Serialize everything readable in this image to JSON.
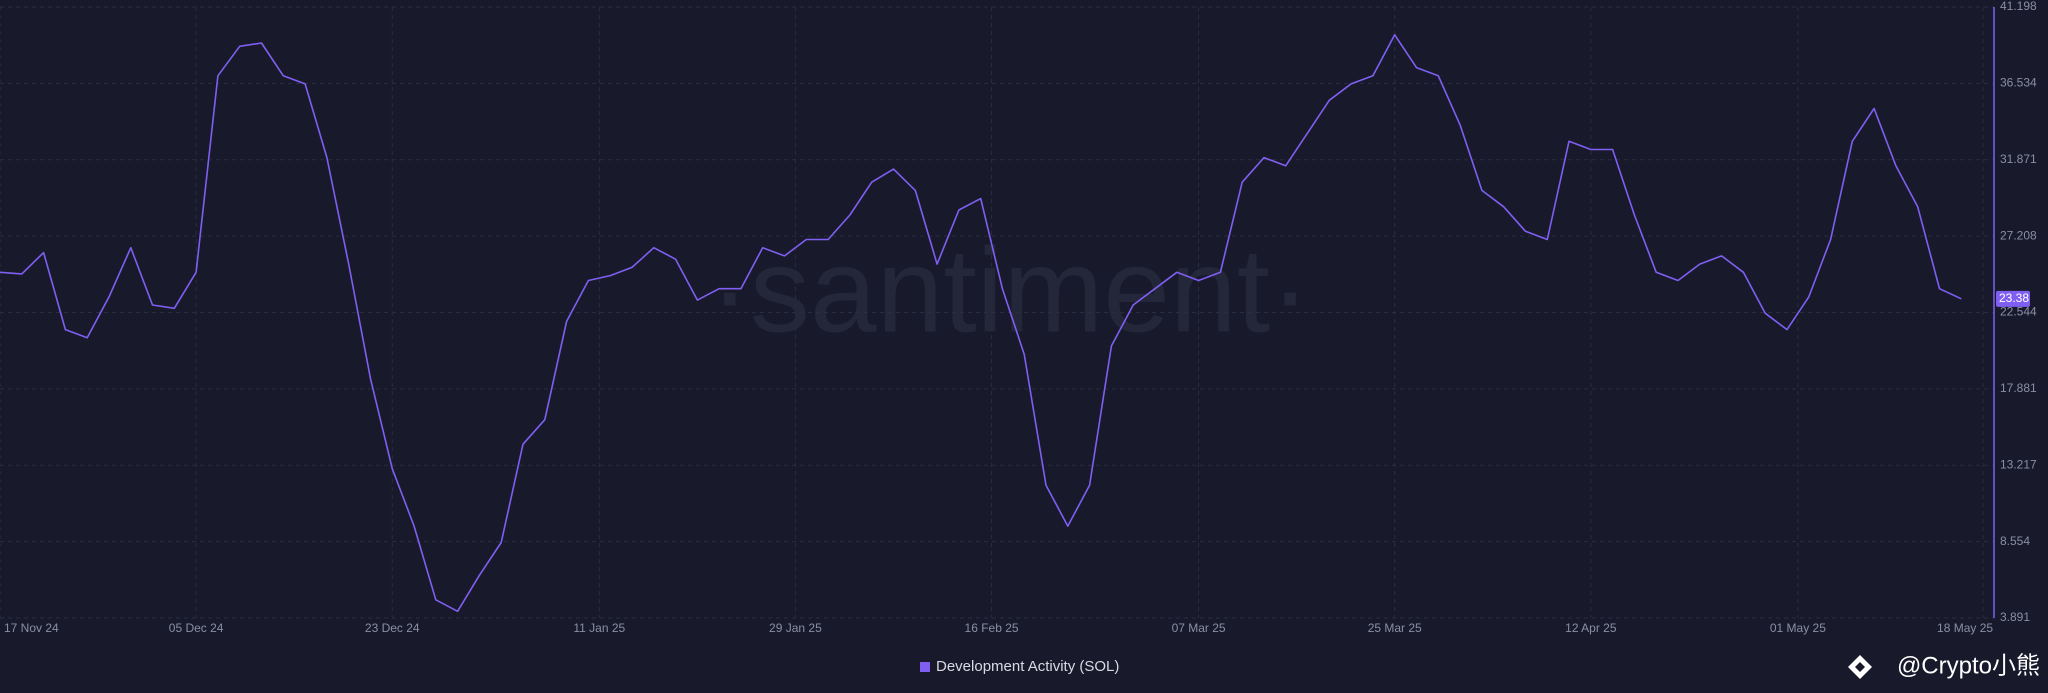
{
  "chart_data": {
    "type": "line",
    "watermark": "·santiment·",
    "attribution": "@Crypto小熊",
    "x": [
      "2024-11-17",
      "2024-11-19",
      "2024-11-21",
      "2024-11-23",
      "2024-11-25",
      "2024-11-27",
      "2024-11-29",
      "2024-12-01",
      "2024-12-03",
      "2024-12-05",
      "2024-12-07",
      "2024-12-09",
      "2024-12-11",
      "2024-12-13",
      "2024-12-15",
      "2024-12-17",
      "2024-12-19",
      "2024-12-21",
      "2024-12-23",
      "2024-12-25",
      "2024-12-27",
      "2024-12-29",
      "2024-12-31",
      "2025-01-02",
      "2025-01-04",
      "2025-01-06",
      "2025-01-08",
      "2025-01-10",
      "2025-01-12",
      "2025-01-14",
      "2025-01-16",
      "2025-01-18",
      "2025-01-20",
      "2025-01-22",
      "2025-01-24",
      "2025-01-26",
      "2025-01-28",
      "2025-01-30",
      "2025-02-01",
      "2025-02-03",
      "2025-02-05",
      "2025-02-07",
      "2025-02-09",
      "2025-02-11",
      "2025-02-13",
      "2025-02-15",
      "2025-02-17",
      "2025-02-19",
      "2025-02-21",
      "2025-02-23",
      "2025-02-25",
      "2025-02-27",
      "2025-03-01",
      "2025-03-03",
      "2025-03-05",
      "2025-03-07",
      "2025-03-09",
      "2025-03-11",
      "2025-03-13",
      "2025-03-15",
      "2025-03-17",
      "2025-03-19",
      "2025-03-21",
      "2025-03-23",
      "2025-03-25",
      "2025-03-27",
      "2025-03-29",
      "2025-03-31",
      "2025-04-02",
      "2025-04-04",
      "2025-04-06",
      "2025-04-08",
      "2025-04-10",
      "2025-04-12",
      "2025-04-14",
      "2025-04-16",
      "2025-04-18",
      "2025-04-20",
      "2025-04-22",
      "2025-04-24",
      "2025-04-26",
      "2025-04-28",
      "2025-04-30",
      "2025-05-02",
      "2025-05-04",
      "2025-05-06",
      "2025-05-08",
      "2025-05-10",
      "2025-05-12",
      "2025-05-14",
      "2025-05-16"
    ],
    "series": [
      {
        "name": "Development Activity (SOL)",
        "color": "#7f5ff2",
        "values": [
          25.0,
          24.9,
          26.2,
          21.5,
          21.0,
          23.5,
          26.5,
          23.0,
          22.8,
          25.0,
          37.0,
          38.8,
          39.0,
          37.0,
          36.5,
          32.0,
          25.5,
          18.5,
          13.0,
          9.5,
          5.0,
          4.3,
          6.5,
          8.5,
          14.5,
          16.0,
          22.0,
          24.5,
          24.8,
          25.3,
          26.5,
          25.8,
          23.3,
          24.0,
          24.0,
          26.5,
          26.0,
          27.0,
          27.0,
          28.5,
          30.5,
          31.3,
          30.0,
          25.5,
          28.8,
          29.5,
          24.0,
          20.0,
          12.0,
          9.5,
          12.0,
          20.5,
          23.0,
          24.0,
          25.0,
          24.5,
          25.0,
          30.5,
          32.0,
          31.5,
          33.5,
          35.5,
          36.5,
          37.0,
          39.5,
          37.5,
          37.0,
          34.0,
          30.0,
          29.0,
          27.5,
          27.0,
          33.0,
          32.5,
          32.5,
          28.5,
          25.0,
          24.5,
          25.5,
          26.0,
          25.0,
          22.5,
          21.5,
          23.5,
          27.0,
          33.0,
          35.0,
          31.5,
          29.0,
          24.0,
          23.38
        ]
      }
    ],
    "xlim": [
      "2024-11-17",
      "2025-05-19"
    ],
    "xticks": [
      {
        "value": "2024-11-17",
        "label": "17 Nov 24"
      },
      {
        "value": "2024-12-05",
        "label": "05 Dec 24"
      },
      {
        "value": "2024-12-23",
        "label": "23 Dec 24"
      },
      {
        "value": "2025-01-11",
        "label": "11 Jan 25"
      },
      {
        "value": "2025-01-29",
        "label": "29 Jan 25"
      },
      {
        "value": "2025-02-16",
        "label": "16 Feb 25"
      },
      {
        "value": "2025-03-07",
        "label": "07 Mar 25"
      },
      {
        "value": "2025-03-25",
        "label": "25 Mar 25"
      },
      {
        "value": "2025-04-12",
        "label": "12 Apr 25"
      },
      {
        "value": "2025-05-01",
        "label": "01 May 25"
      },
      {
        "value": "2025-05-18",
        "label": "18 May 25"
      }
    ],
    "ylim": [
      3.891,
      41.198
    ],
    "yticks": [
      3.891,
      8.554,
      13.217,
      17.881,
      22.544,
      27.208,
      31.871,
      36.534,
      41.198
    ],
    "grid": true,
    "legend": "bottom"
  }
}
